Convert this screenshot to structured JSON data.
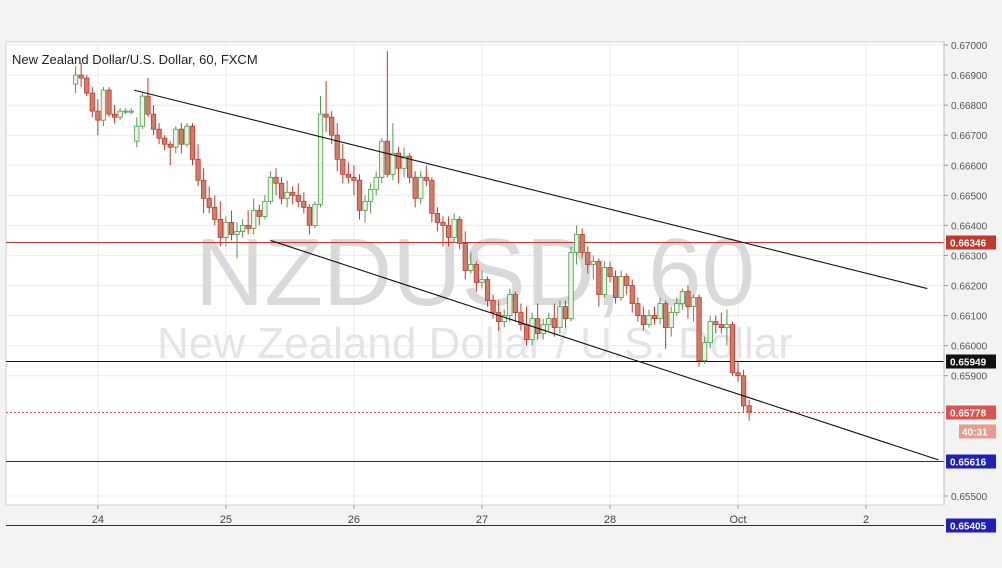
{
  "chart_data": {
    "type": "candlestick",
    "title": "New Zealand Dollar/U.S. Dollar, 60, FXCM",
    "watermark_symbol": "NZDUSD, 60",
    "watermark_name": "New Zealand Dollar / U.S. Dollar",
    "ylim": [
      0.6547,
      0.6701
    ],
    "y_ticks": [
      "0.67000",
      "0.66900",
      "0.66800",
      "0.66700",
      "0.66600",
      "0.66500",
      "0.66400",
      "0.66300",
      "0.66200",
      "0.66100",
      "0.66000",
      "0.65900",
      "0.65500"
    ],
    "x_ticks": [
      {
        "label": "24",
        "x": 4
      },
      {
        "label": "25",
        "x": 27
      },
      {
        "label": "26",
        "x": 50
      },
      {
        "label": "27",
        "x": 73
      },
      {
        "label": "28",
        "x": 96
      },
      {
        "label": "Oct",
        "x": 119
      },
      {
        "label": "2",
        "x": 142
      }
    ],
    "xlim": [
      -12.5,
      156
    ],
    "grid": true,
    "candles": [
      [
        0.6687,
        0.6693,
        0.6684,
        0.669
      ],
      [
        0.669,
        0.6694,
        0.6686,
        0.6689
      ],
      [
        0.6689,
        0.669,
        0.6683,
        0.6684
      ],
      [
        0.6684,
        0.6686,
        0.6676,
        0.6678
      ],
      [
        0.6678,
        0.6682,
        0.667,
        0.6675
      ],
      [
        0.6675,
        0.6686,
        0.6673,
        0.6685
      ],
      [
        0.6685,
        0.6686,
        0.6676,
        0.6677
      ],
      [
        0.6677,
        0.668,
        0.6674,
        0.6676
      ],
      [
        0.6676,
        0.6679,
        0.6675,
        0.6678
      ],
      [
        0.6678,
        0.6679,
        0.6677,
        0.6678
      ],
      [
        0.6678,
        0.6679,
        0.6677,
        0.6678
      ],
      [
        0.6668,
        0.6676,
        0.6666,
        0.6673
      ],
      [
        0.6673,
        0.6684,
        0.6672,
        0.6683
      ],
      [
        0.6683,
        0.6689,
        0.6676,
        0.6677
      ],
      [
        0.6677,
        0.668,
        0.667,
        0.6672
      ],
      [
        0.6672,
        0.6674,
        0.6667,
        0.6669
      ],
      [
        0.6669,
        0.667,
        0.6665,
        0.6667
      ],
      [
        0.6667,
        0.6668,
        0.666,
        0.6666
      ],
      [
        0.6666,
        0.6673,
        0.6664,
        0.6672
      ],
      [
        0.6672,
        0.6674,
        0.6664,
        0.6667
      ],
      [
        0.6667,
        0.6674,
        0.6666,
        0.6673
      ],
      [
        0.6673,
        0.6674,
        0.666,
        0.6662
      ],
      [
        0.6662,
        0.6667,
        0.6653,
        0.6655
      ],
      [
        0.6655,
        0.6659,
        0.6644,
        0.6649
      ],
      [
        0.6649,
        0.6653,
        0.6644,
        0.6646
      ],
      [
        0.6646,
        0.665,
        0.664,
        0.6642
      ],
      [
        0.6642,
        0.6648,
        0.6633,
        0.6636
      ],
      [
        0.6636,
        0.6643,
        0.6633,
        0.6641
      ],
      [
        0.6641,
        0.6645,
        0.6635,
        0.6637
      ],
      [
        0.6637,
        0.6641,
        0.6629,
        0.6638
      ],
      [
        0.6638,
        0.6642,
        0.6636,
        0.664
      ],
      [
        0.664,
        0.6645,
        0.6637,
        0.6639
      ],
      [
        0.6639,
        0.6649,
        0.6637,
        0.6645
      ],
      [
        0.6645,
        0.6647,
        0.664,
        0.6643
      ],
      [
        0.6643,
        0.665,
        0.6642,
        0.6648
      ],
      [
        0.6648,
        0.6658,
        0.6647,
        0.6656
      ],
      [
        0.6656,
        0.6659,
        0.665,
        0.6654
      ],
      [
        0.6654,
        0.6656,
        0.6647,
        0.6649
      ],
      [
        0.6649,
        0.6655,
        0.6646,
        0.6651
      ],
      [
        0.6651,
        0.6653,
        0.6647,
        0.665
      ],
      [
        0.665,
        0.6654,
        0.6646,
        0.6648
      ],
      [
        0.6648,
        0.6651,
        0.6644,
        0.6646
      ],
      [
        0.6646,
        0.6647,
        0.6637,
        0.664
      ],
      [
        0.664,
        0.6648,
        0.6639,
        0.6647
      ],
      [
        0.6647,
        0.6683,
        0.6646,
        0.6677
      ],
      [
        0.6677,
        0.6688,
        0.6671,
        0.6676
      ],
      [
        0.6676,
        0.6678,
        0.6667,
        0.667
      ],
      [
        0.667,
        0.6674,
        0.6658,
        0.6662
      ],
      [
        0.6662,
        0.6667,
        0.6654,
        0.6657
      ],
      [
        0.6657,
        0.6661,
        0.6654,
        0.6656
      ],
      [
        0.6656,
        0.666,
        0.665,
        0.6655
      ],
      [
        0.6655,
        0.6657,
        0.6642,
        0.6645
      ],
      [
        0.6645,
        0.665,
        0.6641,
        0.6648
      ],
      [
        0.6648,
        0.6654,
        0.6644,
        0.6652
      ],
      [
        0.6652,
        0.6658,
        0.665,
        0.6656
      ],
      [
        0.6656,
        0.6669,
        0.6654,
        0.6668
      ],
      [
        0.6668,
        0.6698,
        0.6656,
        0.6657
      ],
      [
        0.6657,
        0.6674,
        0.6655,
        0.6664
      ],
      [
        0.6664,
        0.6666,
        0.6654,
        0.6659
      ],
      [
        0.6659,
        0.6666,
        0.6656,
        0.6663
      ],
      [
        0.6663,
        0.6664,
        0.6654,
        0.6656
      ],
      [
        0.6656,
        0.6658,
        0.6646,
        0.6649
      ],
      [
        0.6649,
        0.6658,
        0.6647,
        0.6656
      ],
      [
        0.6656,
        0.666,
        0.6653,
        0.6655
      ],
      [
        0.6655,
        0.6656,
        0.6641,
        0.6644
      ],
      [
        0.6644,
        0.6646,
        0.6638,
        0.6641
      ],
      [
        0.6641,
        0.6643,
        0.6633,
        0.664
      ],
      [
        0.664,
        0.6643,
        0.6633,
        0.6636
      ],
      [
        0.6636,
        0.6644,
        0.6634,
        0.6642
      ],
      [
        0.6642,
        0.6643,
        0.6632,
        0.6634
      ],
      [
        0.6634,
        0.6638,
        0.6622,
        0.6625
      ],
      [
        0.6625,
        0.6631,
        0.6624,
        0.6627
      ],
      [
        0.6627,
        0.6628,
        0.6618,
        0.6621
      ],
      [
        0.6621,
        0.6625,
        0.6619,
        0.6622
      ],
      [
        0.6622,
        0.6623,
        0.6613,
        0.6615
      ],
      [
        0.6615,
        0.6617,
        0.6609,
        0.6611
      ],
      [
        0.6611,
        0.6615,
        0.6605,
        0.6608
      ],
      [
        0.6608,
        0.6612,
        0.6606,
        0.661
      ],
      [
        0.661,
        0.6619,
        0.6608,
        0.6617
      ],
      [
        0.6617,
        0.6618,
        0.6608,
        0.6611
      ],
      [
        0.6611,
        0.6614,
        0.6605,
        0.6607
      ],
      [
        0.6607,
        0.6613,
        0.66,
        0.6602
      ],
      [
        0.6602,
        0.6611,
        0.66,
        0.6609
      ],
      [
        0.6609,
        0.6614,
        0.6602,
        0.6604
      ],
      [
        0.6604,
        0.6609,
        0.6602,
        0.6607
      ],
      [
        0.6607,
        0.6611,
        0.6605,
        0.6609
      ],
      [
        0.6609,
        0.6614,
        0.6603,
        0.6606
      ],
      [
        0.6606,
        0.6615,
        0.6604,
        0.6613
      ],
      [
        0.6613,
        0.6615,
        0.6606,
        0.6609
      ],
      [
        0.6609,
        0.6633,
        0.6608,
        0.6631
      ],
      [
        0.6631,
        0.664,
        0.6627,
        0.6637
      ],
      [
        0.6637,
        0.6639,
        0.6629,
        0.6631
      ],
      [
        0.6631,
        0.6633,
        0.6624,
        0.6627
      ],
      [
        0.6627,
        0.663,
        0.6622,
        0.6628
      ],
      [
        0.6628,
        0.6629,
        0.6613,
        0.6617
      ],
      [
        0.6617,
        0.6628,
        0.6616,
        0.6626
      ],
      [
        0.6626,
        0.6628,
        0.6621,
        0.6623
      ],
      [
        0.6623,
        0.6625,
        0.6614,
        0.6616
      ],
      [
        0.6616,
        0.6625,
        0.6615,
        0.6623
      ],
      [
        0.6623,
        0.6624,
        0.6617,
        0.662
      ],
      [
        0.662,
        0.6622,
        0.6611,
        0.6614
      ],
      [
        0.6614,
        0.6616,
        0.6608,
        0.661
      ],
      [
        0.661,
        0.6613,
        0.6605,
        0.6607
      ],
      [
        0.6607,
        0.6612,
        0.6606,
        0.661
      ],
      [
        0.661,
        0.6613,
        0.6607,
        0.6609
      ],
      [
        0.6609,
        0.6616,
        0.6607,
        0.6614
      ],
      [
        0.6614,
        0.6615,
        0.6599,
        0.6606
      ],
      [
        0.6606,
        0.6613,
        0.6603,
        0.6611
      ],
      [
        0.6611,
        0.6616,
        0.661,
        0.6614
      ],
      [
        0.6614,
        0.6619,
        0.6612,
        0.6618
      ],
      [
        0.6618,
        0.662,
        0.6609,
        0.6613
      ],
      [
        0.6613,
        0.6617,
        0.6608,
        0.6616
      ],
      [
        0.6616,
        0.6617,
        0.6593,
        0.6595
      ],
      [
        0.6595,
        0.6603,
        0.6594,
        0.6601
      ],
      [
        0.6601,
        0.661,
        0.6599,
        0.6608
      ],
      [
        0.6608,
        0.661,
        0.6604,
        0.6607
      ],
      [
        0.6607,
        0.6611,
        0.6604,
        0.6606
      ],
      [
        0.6606,
        0.6612,
        0.66,
        0.6607
      ],
      [
        0.6607,
        0.6608,
        0.659,
        0.6591
      ],
      [
        0.6591,
        0.6595,
        0.6588,
        0.659
      ],
      [
        0.659,
        0.6592,
        0.6578,
        0.658
      ],
      [
        0.658,
        0.6582,
        0.6575,
        0.6578
      ]
    ],
    "trendlines": [
      {
        "name": "channel-upper",
        "x": [
          10.5,
          153
        ],
        "y": [
          0.6685,
          0.6619
        ]
      },
      {
        "name": "channel-lower",
        "x": [
          35,
          155
        ],
        "y": [
          0.6635,
          0.6562
        ]
      }
    ],
    "levels": [
      {
        "name": "resistance",
        "value": 0.66346,
        "label": "0.66346",
        "color": "#c0392b"
      },
      {
        "name": "support-1",
        "value": 0.65949,
        "label": "0.65949",
        "color": "#111111"
      },
      {
        "name": "support-2",
        "value": 0.65616,
        "label": "0.65616",
        "color": "#1f1fb8"
      },
      {
        "name": "support-3",
        "value": 0.65405,
        "label": "0.65405",
        "color": "#1f1fb8"
      }
    ],
    "last_price": {
      "value": 0.65778,
      "label": "0.65778",
      "countdown": "40:31",
      "color": "#d9534f"
    },
    "colors": {
      "up": "#4e9a4a",
      "down": "#c0392b",
      "up_body": "#e8f4e4",
      "down_body": "#d47a6d"
    }
  }
}
